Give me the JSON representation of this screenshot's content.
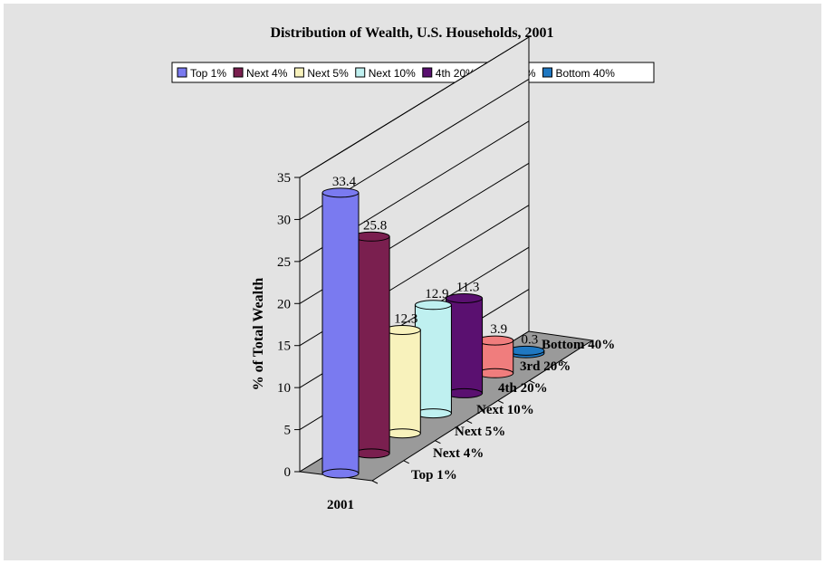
{
  "chart_data": {
    "type": "bar",
    "title": "Distribution of Wealth, U.S. Households, 2001",
    "ylabel": "%   of   Total   Wealth",
    "xlabel": "",
    "ylim": [
      0,
      35
    ],
    "y_ticks": [
      "0",
      "5",
      "10",
      "15",
      "20",
      "25",
      "30",
      "35"
    ],
    "categories": [
      "2001"
    ],
    "series": [
      {
        "name": "Top 1%",
        "values": [
          33.4
        ],
        "value_label": "33.4",
        "color": "#7a7af0"
      },
      {
        "name": "Next 4%",
        "values": [
          25.8
        ],
        "value_label": "25.8",
        "color": "#7a1f4f"
      },
      {
        "name": "Next 5%",
        "values": [
          12.3
        ],
        "value_label": "12.3",
        "color": "#f8f2bc"
      },
      {
        "name": "Next 10%",
        "values": [
          12.9
        ],
        "value_label": "12.9",
        "color": "#bff0f0"
      },
      {
        "name": "4th 20%",
        "values": [
          11.3
        ],
        "value_label": "11.3",
        "color": "#5a1070"
      },
      {
        "name": "3rd 20%",
        "values": [
          3.9
        ],
        "value_label": "3.9",
        "color": "#f07d7d"
      },
      {
        "name": "Bottom 40%",
        "values": [
          0.3
        ],
        "value_label": "0.3",
        "color": "#1f78c2"
      }
    ],
    "grid": true,
    "legend_position": "top"
  }
}
